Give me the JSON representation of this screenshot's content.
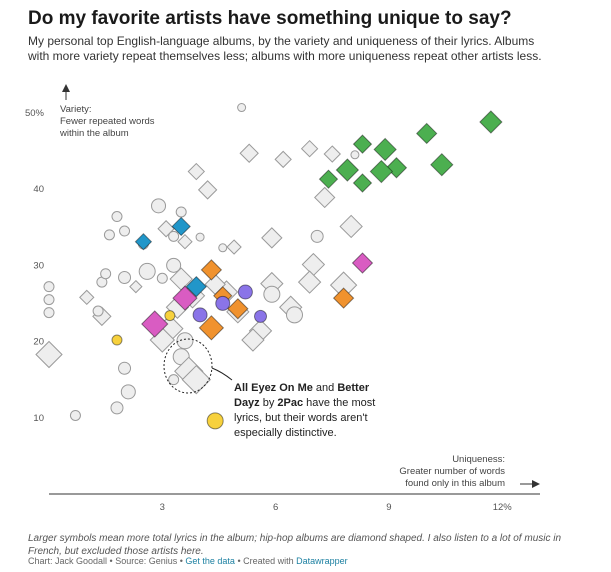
{
  "title": "Do my favorite artists have something unique to say?",
  "subtitle": "My personal top English-language albums, by the variety and uniqueness of their lyrics. Albums with more variety repeat themselves less; albums with more uniqueness repeat other artists less.",
  "notes": "Larger symbols mean more total lyrics in the album; hip-hop albums are diamond shaped. I also listen to a lot of music in French, but excluded those artists here.",
  "credits": {
    "chart_by": "Chart: Jack Goodall",
    "sep1": " • ",
    "source": "Source: Genius",
    "sep2": " • ",
    "get_data": "Get the data",
    "sep3": " • Created with ",
    "created_with": "Datawrapper"
  },
  "colors": {
    "green": "#4caf50",
    "blue": "#2196c9",
    "orange": "#f0922e",
    "pink": "#d95cc2",
    "purple": "#8a74e8",
    "yellow": "#f7d13d",
    "gray": "#eeeeee"
  },
  "chart_data": {
    "type": "scatter",
    "xlabel_line1": "Uniqueness:",
    "xlabel_line2": "Greater number of words",
    "xlabel_line3": "found only in this album",
    "ylabel_line1": "Variety:",
    "ylabel_line2": "Fewer repeated words",
    "ylabel_line3": "within the album",
    "xlim": [
      0,
      13
    ],
    "ylim": [
      0,
      53
    ],
    "x_ticks": [
      {
        "value": 3,
        "label": "3"
      },
      {
        "value": 6,
        "label": "6"
      },
      {
        "value": 9,
        "label": "9"
      },
      {
        "value": 12,
        "label": "12%"
      }
    ],
    "y_ticks": [
      {
        "value": 10,
        "label": "10"
      },
      {
        "value": 20,
        "label": "20"
      },
      {
        "value": 30,
        "label": "30"
      },
      {
        "value": 40,
        "label": "40"
      },
      {
        "value": 50,
        "label": "50%"
      }
    ],
    "annotation": {
      "bold1": "All Eyez On Me",
      "text1": " and ",
      "bold2": "Better",
      "bold3": "Dayz",
      "text2": " by ",
      "bold4": "2Pac",
      "text3": " have the most",
      "line3": "lyrics, but their words aren't",
      "line4": "especially distinctive."
    },
    "points": [
      {
        "x": 11.7,
        "y": 48.8,
        "shape": "diamond",
        "size": 11,
        "color": "green"
      },
      {
        "x": 10.0,
        "y": 47.3,
        "shape": "diamond",
        "size": 10,
        "color": "green"
      },
      {
        "x": 8.3,
        "y": 45.9,
        "shape": "diamond",
        "size": 9,
        "color": "green"
      },
      {
        "x": 8.9,
        "y": 45.2,
        "shape": "diamond",
        "size": 11,
        "color": "green"
      },
      {
        "x": 10.4,
        "y": 43.2,
        "shape": "diamond",
        "size": 11,
        "color": "green"
      },
      {
        "x": 9.2,
        "y": 42.8,
        "shape": "diamond",
        "size": 10,
        "color": "green"
      },
      {
        "x": 8.8,
        "y": 42.3,
        "shape": "diamond",
        "size": 11,
        "color": "green"
      },
      {
        "x": 7.9,
        "y": 42.5,
        "shape": "diamond",
        "size": 11,
        "color": "green"
      },
      {
        "x": 8.3,
        "y": 40.8,
        "shape": "diamond",
        "size": 9,
        "color": "green"
      },
      {
        "x": 7.4,
        "y": 41.3,
        "shape": "diamond",
        "size": 9,
        "color": "green"
      },
      {
        "x": 3.5,
        "y": 35.1,
        "shape": "diamond",
        "size": 9,
        "color": "blue"
      },
      {
        "x": 2.5,
        "y": 33.1,
        "shape": "diamond",
        "size": 8,
        "color": "blue"
      },
      {
        "x": 3.9,
        "y": 27.2,
        "shape": "diamond",
        "size": 10,
        "color": "blue"
      },
      {
        "x": 4.3,
        "y": 29.4,
        "shape": "diamond",
        "size": 10,
        "color": "orange"
      },
      {
        "x": 4.6,
        "y": 26.0,
        "shape": "diamond",
        "size": 9,
        "color": "orange"
      },
      {
        "x": 5.0,
        "y": 24.3,
        "shape": "diamond",
        "size": 10,
        "color": "orange"
      },
      {
        "x": 4.3,
        "y": 21.8,
        "shape": "diamond",
        "size": 12,
        "color": "orange"
      },
      {
        "x": 7.8,
        "y": 25.7,
        "shape": "diamond",
        "size": 10,
        "color": "orange"
      },
      {
        "x": 8.3,
        "y": 30.3,
        "shape": "diamond",
        "size": 10,
        "color": "pink"
      },
      {
        "x": 3.6,
        "y": 25.7,
        "shape": "diamond",
        "size": 12,
        "color": "pink"
      },
      {
        "x": 2.8,
        "y": 22.3,
        "shape": "diamond",
        "size": 13,
        "color": "pink"
      },
      {
        "x": 4.0,
        "y": 23.5,
        "shape": "circle",
        "size": 7,
        "color": "purple"
      },
      {
        "x": 4.6,
        "y": 25.0,
        "shape": "circle",
        "size": 7,
        "color": "purple"
      },
      {
        "x": 5.2,
        "y": 26.5,
        "shape": "circle",
        "size": 7,
        "color": "purple"
      },
      {
        "x": 5.6,
        "y": 23.3,
        "shape": "circle",
        "size": 6,
        "color": "purple"
      },
      {
        "x": 4.4,
        "y": 9.6,
        "shape": "circle",
        "size": 8,
        "color": "yellow"
      },
      {
        "x": 1.8,
        "y": 20.2,
        "shape": "circle",
        "size": 5,
        "color": "yellow"
      },
      {
        "x": 3.2,
        "y": 23.4,
        "shape": "circle",
        "size": 5,
        "color": "yellow"
      },
      {
        "x": 0.0,
        "y": 18.3,
        "shape": "diamond",
        "size": 13,
        "color": "gray"
      },
      {
        "x": 0.0,
        "y": 27.2,
        "shape": "circle",
        "size": 5,
        "color": "gray"
      },
      {
        "x": 0.0,
        "y": 25.5,
        "shape": "circle",
        "size": 5,
        "color": "gray"
      },
      {
        "x": 0.0,
        "y": 23.8,
        "shape": "circle",
        "size": 5,
        "color": "gray"
      },
      {
        "x": 0.7,
        "y": 10.3,
        "shape": "circle",
        "size": 5,
        "color": "gray"
      },
      {
        "x": 1.8,
        "y": 11.3,
        "shape": "circle",
        "size": 6,
        "color": "gray"
      },
      {
        "x": 2.1,
        "y": 13.4,
        "shape": "circle",
        "size": 7,
        "color": "gray"
      },
      {
        "x": 2.0,
        "y": 16.5,
        "shape": "circle",
        "size": 6,
        "color": "gray"
      },
      {
        "x": 1.4,
        "y": 23.3,
        "shape": "diamond",
        "size": 9,
        "color": "gray"
      },
      {
        "x": 1.3,
        "y": 24.0,
        "shape": "circle",
        "size": 5,
        "color": "gray"
      },
      {
        "x": 1.0,
        "y": 25.8,
        "shape": "diamond",
        "size": 7,
        "color": "gray"
      },
      {
        "x": 1.4,
        "y": 27.8,
        "shape": "circle",
        "size": 5,
        "color": "gray"
      },
      {
        "x": 1.5,
        "y": 28.9,
        "shape": "circle",
        "size": 5,
        "color": "gray"
      },
      {
        "x": 2.0,
        "y": 28.4,
        "shape": "circle",
        "size": 6,
        "color": "gray"
      },
      {
        "x": 2.3,
        "y": 27.2,
        "shape": "diamond",
        "size": 6,
        "color": "gray"
      },
      {
        "x": 2.6,
        "y": 29.2,
        "shape": "circle",
        "size": 8,
        "color": "gray"
      },
      {
        "x": 3.0,
        "y": 28.3,
        "shape": "circle",
        "size": 5,
        "color": "gray"
      },
      {
        "x": 2.5,
        "y": 32.8,
        "shape": "circle",
        "size": 5,
        "color": "gray"
      },
      {
        "x": 1.6,
        "y": 34.0,
        "shape": "circle",
        "size": 5,
        "color": "gray"
      },
      {
        "x": 2.0,
        "y": 34.5,
        "shape": "circle",
        "size": 5,
        "color": "gray"
      },
      {
        "x": 1.8,
        "y": 36.4,
        "shape": "circle",
        "size": 5,
        "color": "gray"
      },
      {
        "x": 2.9,
        "y": 37.8,
        "shape": "circle",
        "size": 7,
        "color": "gray"
      },
      {
        "x": 3.1,
        "y": 34.8,
        "shape": "diamond",
        "size": 8,
        "color": "gray"
      },
      {
        "x": 3.3,
        "y": 33.8,
        "shape": "circle",
        "size": 5,
        "color": "gray"
      },
      {
        "x": 3.6,
        "y": 33.1,
        "shape": "diamond",
        "size": 7,
        "color": "gray"
      },
      {
        "x": 4.0,
        "y": 33.7,
        "shape": "circle",
        "size": 4,
        "color": "gray"
      },
      {
        "x": 4.9,
        "y": 32.4,
        "shape": "diamond",
        "size": 7,
        "color": "gray"
      },
      {
        "x": 3.5,
        "y": 37.0,
        "shape": "circle",
        "size": 5,
        "color": "gray"
      },
      {
        "x": 3.9,
        "y": 42.3,
        "shape": "diamond",
        "size": 8,
        "color": "gray"
      },
      {
        "x": 4.2,
        "y": 39.9,
        "shape": "diamond",
        "size": 9,
        "color": "gray"
      },
      {
        "x": 5.3,
        "y": 44.7,
        "shape": "diamond",
        "size": 9,
        "color": "gray"
      },
      {
        "x": 5.1,
        "y": 50.7,
        "shape": "circle",
        "size": 4,
        "color": "gray"
      },
      {
        "x": 6.2,
        "y": 43.9,
        "shape": "diamond",
        "size": 8,
        "color": "gray"
      },
      {
        "x": 6.9,
        "y": 45.3,
        "shape": "diamond",
        "size": 8,
        "color": "gray"
      },
      {
        "x": 7.5,
        "y": 44.6,
        "shape": "diamond",
        "size": 8,
        "color": "gray"
      },
      {
        "x": 8.1,
        "y": 44.5,
        "shape": "circle",
        "size": 4,
        "color": "gray"
      },
      {
        "x": 7.3,
        "y": 38.9,
        "shape": "diamond",
        "size": 10,
        "color": "gray"
      },
      {
        "x": 8.0,
        "y": 35.1,
        "shape": "diamond",
        "size": 11,
        "color": "gray"
      },
      {
        "x": 7.1,
        "y": 33.8,
        "shape": "circle",
        "size": 6,
        "color": "gray"
      },
      {
        "x": 5.9,
        "y": 33.6,
        "shape": "diamond",
        "size": 10,
        "color": "gray"
      },
      {
        "x": 7.0,
        "y": 30.1,
        "shape": "diamond",
        "size": 11,
        "color": "gray"
      },
      {
        "x": 6.9,
        "y": 27.8,
        "shape": "diamond",
        "size": 11,
        "color": "gray"
      },
      {
        "x": 7.8,
        "y": 27.4,
        "shape": "diamond",
        "size": 13,
        "color": "gray"
      },
      {
        "x": 5.9,
        "y": 27.6,
        "shape": "diamond",
        "size": 11,
        "color": "gray"
      },
      {
        "x": 5.9,
        "y": 26.2,
        "shape": "circle",
        "size": 8,
        "color": "gray"
      },
      {
        "x": 6.4,
        "y": 24.5,
        "shape": "diamond",
        "size": 11,
        "color": "gray"
      },
      {
        "x": 6.5,
        "y": 23.5,
        "shape": "circle",
        "size": 8,
        "color": "gray"
      },
      {
        "x": 5.6,
        "y": 21.4,
        "shape": "diamond",
        "size": 11,
        "color": "gray"
      },
      {
        "x": 5.4,
        "y": 20.2,
        "shape": "diamond",
        "size": 11,
        "color": "gray"
      },
      {
        "x": 5.0,
        "y": 23.9,
        "shape": "diamond",
        "size": 11,
        "color": "gray"
      },
      {
        "x": 4.7,
        "y": 26.5,
        "shape": "diamond",
        "size": 11,
        "color": "gray"
      },
      {
        "x": 4.4,
        "y": 27.5,
        "shape": "diamond",
        "size": 10,
        "color": "gray"
      },
      {
        "x": 3.8,
        "y": 26.0,
        "shape": "diamond",
        "size": 12,
        "color": "gray"
      },
      {
        "x": 3.5,
        "y": 28.2,
        "shape": "diamond",
        "size": 11,
        "color": "gray"
      },
      {
        "x": 3.3,
        "y": 30.0,
        "shape": "circle",
        "size": 7,
        "color": "gray"
      },
      {
        "x": 3.4,
        "y": 24.5,
        "shape": "diamond",
        "size": 11,
        "color": "gray"
      },
      {
        "x": 3.2,
        "y": 21.7,
        "shape": "diamond",
        "size": 13,
        "color": "gray"
      },
      {
        "x": 3.0,
        "y": 20.2,
        "shape": "diamond",
        "size": 12,
        "color": "gray"
      },
      {
        "x": 3.6,
        "y": 20.1,
        "shape": "circle",
        "size": 8,
        "color": "gray"
      },
      {
        "x": 3.5,
        "y": 18.0,
        "shape": "circle",
        "size": 8,
        "color": "gray"
      },
      {
        "x": 3.7,
        "y": 16.1,
        "shape": "diamond",
        "size": 14,
        "color": "gray"
      },
      {
        "x": 3.9,
        "y": 15.0,
        "shape": "diamond",
        "size": 14,
        "color": "gray"
      },
      {
        "x": 3.3,
        "y": 15.0,
        "shape": "circle",
        "size": 5,
        "color": "gray"
      },
      {
        "x": 4.6,
        "y": 32.3,
        "shape": "circle",
        "size": 4,
        "color": "gray"
      }
    ]
  }
}
